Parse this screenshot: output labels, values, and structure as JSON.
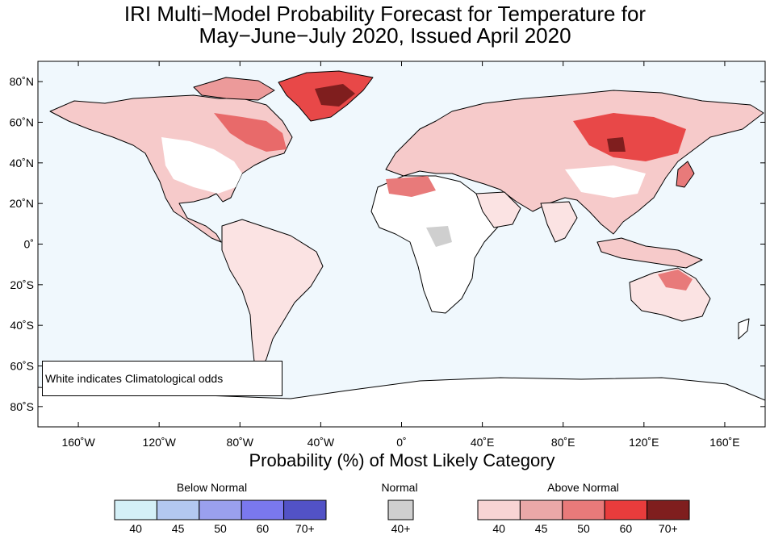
{
  "title": {
    "line1": "IRI Multi−Model Probability Forecast for Temperature for",
    "line2": "May−June−July 2020, Issued April 2020"
  },
  "map": {
    "lat_labels": [
      "80˚N",
      "60˚N",
      "40˚N",
      "20˚N",
      "0˚",
      "20˚S",
      "40˚S",
      "60˚S",
      "80˚S"
    ],
    "lat_values": [
      80,
      60,
      40,
      20,
      0,
      -20,
      -40,
      -60,
      -80
    ],
    "lon_labels": [
      "160˚W",
      "120˚W",
      "80˚W",
      "40˚W",
      "0˚",
      "40˚E",
      "80˚E",
      "120˚E",
      "160˚E"
    ],
    "lon_values": [
      -160,
      -120,
      -80,
      -40,
      0,
      40,
      80,
      120,
      160
    ],
    "lon_range": [
      -180,
      180
    ],
    "lat_range": [
      -90,
      90
    ],
    "ocean_color": "#f0f8fd",
    "note": "White indicates Climatological odds"
  },
  "x_title": "Probability (%) of Most Likely Category",
  "legend": {
    "below": {
      "label": "Below Normal",
      "ticks": [
        "40",
        "45",
        "50",
        "60",
        "70+"
      ],
      "colors": [
        "#d4f0f7",
        "#b3c8f0",
        "#9aa0ee",
        "#7a78ee",
        "#5252c6"
      ]
    },
    "normal": {
      "label": "Normal",
      "ticks": [
        "40+"
      ],
      "colors": [
        "#cfcfcf"
      ]
    },
    "above": {
      "label": "Above Normal",
      "ticks": [
        "40",
        "45",
        "50",
        "60",
        "70+"
      ],
      "colors": [
        "#f8d4d4",
        "#eaa8a8",
        "#e87a7a",
        "#e83c3c",
        "#7f1e1e"
      ]
    }
  }
}
